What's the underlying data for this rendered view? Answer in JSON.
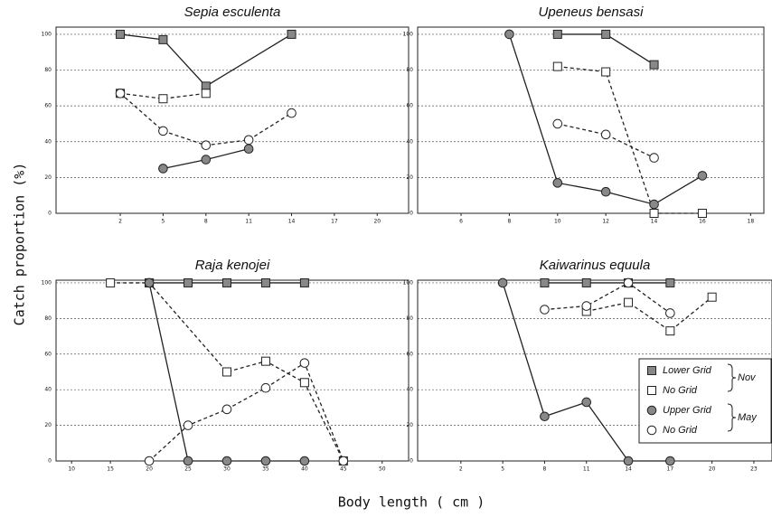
{
  "figure": {
    "ylabel": "Catch  proportion  (%)",
    "xlabel": "Body  length  ( cm )",
    "legend_groups": [
      "Nov",
      "May"
    ]
  },
  "chart_data": [
    {
      "type": "line",
      "title": "Sepia esculenta",
      "xlim": [
        -2.5,
        22.2
      ],
      "ylim": [
        0,
        104
      ],
      "xticks": [
        2,
        5,
        8,
        11,
        14,
        17,
        20
      ],
      "yticks": [
        0,
        20,
        40,
        60,
        80,
        100
      ],
      "grid": true,
      "series": [
        {
          "name": "Lower Grid",
          "marker": "square",
          "fill": "#888",
          "color": "#222",
          "line": "solid",
          "x": [
            2,
            5,
            8,
            14
          ],
          "values": [
            100,
            97,
            71,
            100
          ]
        },
        {
          "name": "No Grid",
          "marker": "square",
          "fill": "#fff",
          "color": "#222",
          "line": "dashed",
          "x": [
            2,
            5,
            8
          ],
          "values": [
            67,
            64,
            67
          ]
        },
        {
          "name": "Upper Grid",
          "marker": "circle",
          "fill": "#888",
          "color": "#222",
          "line": "solid",
          "x": [
            5,
            8,
            11
          ],
          "values": [
            25,
            30,
            36
          ]
        },
        {
          "name": "No Grid",
          "marker": "circle",
          "fill": "#fff",
          "color": "#222",
          "line": "dashed",
          "x": [
            2,
            5,
            8,
            11,
            14
          ],
          "values": [
            67,
            46,
            38,
            41,
            56
          ]
        }
      ]
    },
    {
      "type": "line",
      "title": "Upeneus bensasi",
      "xlim": [
        4.2,
        18.55
      ],
      "ylim": [
        0,
        104
      ],
      "xticks": [
        6,
        8,
        10,
        12,
        14,
        16,
        18
      ],
      "yticks": [
        0,
        20,
        40,
        60,
        80,
        100
      ],
      "grid": true,
      "series": [
        {
          "name": "Lower Grid",
          "marker": "square",
          "fill": "#888",
          "color": "#222",
          "line": "solid",
          "x": [
            10,
            12,
            14
          ],
          "values": [
            100,
            100,
            83
          ]
        },
        {
          "name": "No Grid",
          "marker": "square",
          "fill": "#fff",
          "color": "#222",
          "line": "dashed",
          "x": [
            10,
            12,
            14,
            16
          ],
          "values": [
            82,
            79,
            0,
            0
          ]
        },
        {
          "name": "Upper Grid",
          "marker": "circle",
          "fill": "#888",
          "color": "#222",
          "line": "solid",
          "x": [
            8,
            10,
            12,
            14,
            16
          ],
          "values": [
            100,
            17,
            12,
            5,
            21
          ]
        },
        {
          "name": "No Grid",
          "marker": "circle",
          "fill": "#fff",
          "color": "#222",
          "line": "dashed",
          "x": [
            10,
            12,
            14
          ],
          "values": [
            50,
            44,
            31
          ]
        }
      ]
    },
    {
      "type": "line",
      "title": "Raja kenojei",
      "xlim": [
        8,
        53.4
      ],
      "ylim": [
        0,
        101.5
      ],
      "xticks": [
        10,
        15,
        20,
        25,
        30,
        35,
        40,
        45,
        50
      ],
      "yticks": [
        0,
        20,
        40,
        60,
        80,
        100
      ],
      "grid": true,
      "series": [
        {
          "name": "Lower Grid",
          "marker": "square",
          "fill": "#888",
          "color": "#222",
          "line": "solid",
          "x": [
            20,
            25,
            30,
            35,
            40
          ],
          "values": [
            100,
            100,
            100,
            100,
            100
          ]
        },
        {
          "name": "No Grid",
          "marker": "square",
          "fill": "#fff",
          "color": "#222",
          "line": "dashed",
          "x": [
            15,
            20,
            30,
            35,
            40,
            45
          ],
          "values": [
            100,
            100,
            50,
            56,
            44,
            0
          ]
        },
        {
          "name": "Upper Grid",
          "marker": "circle",
          "fill": "#888",
          "color": "#222",
          "line": "solid",
          "x": [
            20,
            25,
            30,
            35,
            40
          ],
          "values": [
            100,
            0,
            0,
            0,
            0
          ]
        },
        {
          "name": "No Grid",
          "marker": "circle",
          "fill": "#fff",
          "color": "#222",
          "line": "dashed",
          "x": [
            20,
            25,
            30,
            35,
            40,
            45
          ],
          "values": [
            0,
            20,
            29,
            41,
            55,
            0
          ]
        }
      ]
    },
    {
      "type": "line",
      "title": "Kaiwarinus equula",
      "xlim": [
        -1.1,
        24.3
      ],
      "ylim": [
        0,
        101.5
      ],
      "xticks": [
        2,
        5,
        8,
        11,
        14,
        17,
        20,
        23
      ],
      "yticks": [
        0,
        20,
        40,
        60,
        80,
        100
      ],
      "grid": true,
      "series": [
        {
          "name": "Lower Grid",
          "marker": "square",
          "fill": "#888",
          "color": "#222",
          "line": "solid",
          "x": [
            8,
            11,
            14,
            17
          ],
          "values": [
            100,
            100,
            100,
            100
          ]
        },
        {
          "name": "No Grid",
          "marker": "square",
          "fill": "#fff",
          "color": "#222",
          "line": "dashed",
          "x": [
            11,
            14,
            17,
            20
          ],
          "values": [
            84,
            89,
            73,
            92
          ]
        },
        {
          "name": "Upper Grid",
          "marker": "circle",
          "fill": "#888",
          "color": "#222",
          "line": "solid",
          "x": [
            5,
            8,
            11,
            14,
            17
          ],
          "values": [
            100,
            25,
            33,
            0,
            0
          ]
        },
        {
          "name": "No Grid",
          "marker": "circle",
          "fill": "#fff",
          "color": "#222",
          "line": "dashed",
          "x": [
            8,
            11,
            14,
            17
          ],
          "values": [
            85,
            87,
            100,
            83
          ]
        }
      ]
    }
  ]
}
